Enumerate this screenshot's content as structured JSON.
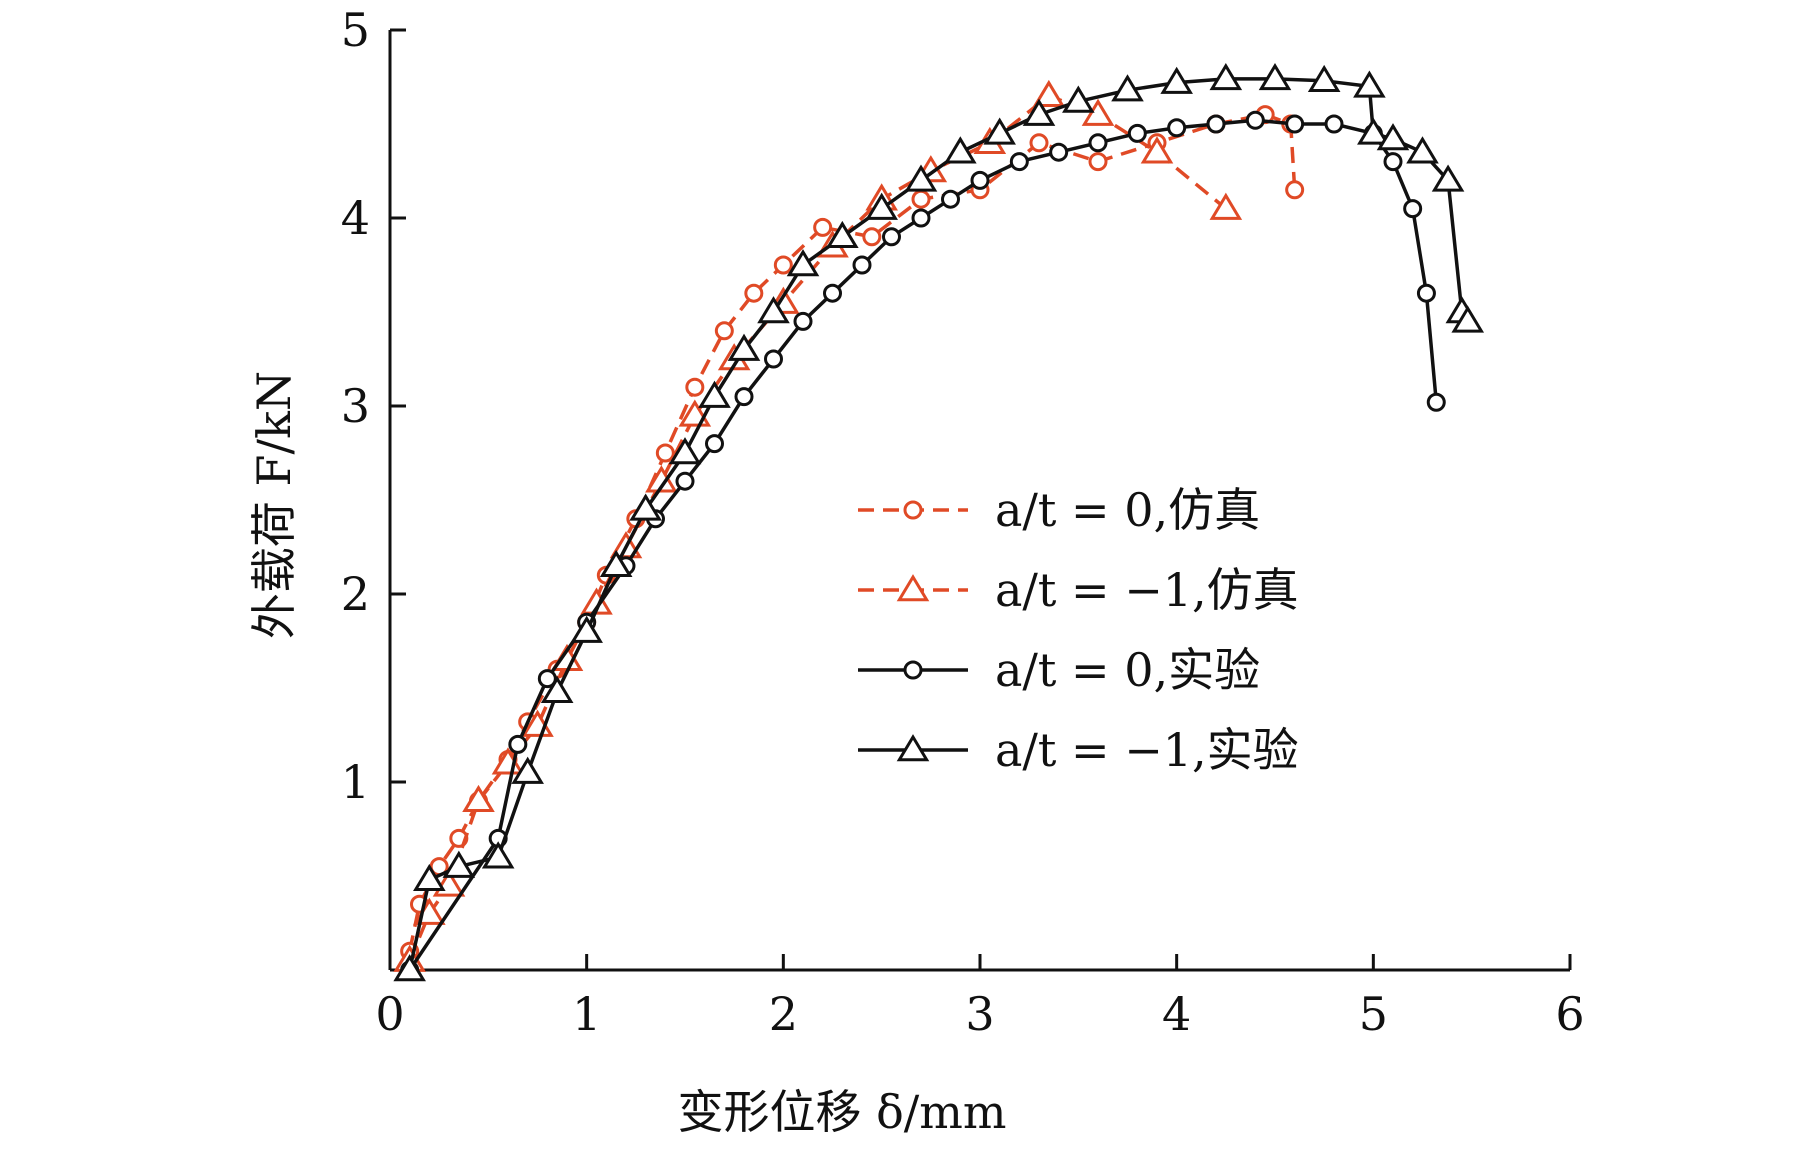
{
  "chart_data": {
    "type": "line",
    "xlabel": "变形位移 δ/mm",
    "ylabel": "外载荷 F/kN",
    "xlim": [
      0,
      6
    ],
    "ylim": [
      0,
      5
    ],
    "xticks": [
      "0",
      "1",
      "2",
      "3",
      "4",
      "5",
      "6"
    ],
    "yticks": [
      "1",
      "2",
      "3",
      "4",
      "5"
    ],
    "grid": false,
    "legend_position": "center-right",
    "colors": {
      "sim": "#e04a26",
      "exp": "#111111"
    },
    "series": [
      {
        "name": "a/t = 0,仿真",
        "style": "dashed",
        "marker": "circle",
        "color": "#e04a26",
        "x": [
          0.1,
          0.15,
          0.25,
          0.35,
          0.45,
          0.6,
          0.7,
          0.85,
          1.0,
          1.1,
          1.25,
          1.4,
          1.55,
          1.7,
          1.85,
          2.0,
          2.2,
          2.45,
          2.7,
          3.0,
          3.3,
          3.6,
          3.9,
          4.2,
          4.45,
          4.58,
          4.6
        ],
        "y": [
          0.1,
          0.35,
          0.55,
          0.7,
          0.9,
          1.12,
          1.32,
          1.6,
          1.85,
          2.1,
          2.4,
          2.75,
          3.1,
          3.4,
          3.6,
          3.75,
          3.95,
          3.9,
          4.1,
          4.15,
          4.4,
          4.3,
          4.4,
          4.5,
          4.55,
          4.5,
          4.15
        ]
      },
      {
        "name": "a/t = −1,仿真",
        "style": "dashed",
        "marker": "triangle",
        "color": "#e04a26",
        "x": [
          0.1,
          0.2,
          0.3,
          0.45,
          0.6,
          0.75,
          0.9,
          1.05,
          1.2,
          1.38,
          1.55,
          1.75,
          2.0,
          2.25,
          2.5,
          2.75,
          3.05,
          3.35,
          3.6,
          3.9,
          4.25
        ],
        "y": [
          0.05,
          0.3,
          0.45,
          0.9,
          1.1,
          1.3,
          1.65,
          1.95,
          2.25,
          2.6,
          2.95,
          3.25,
          3.55,
          3.85,
          4.1,
          4.25,
          4.4,
          4.65,
          4.55,
          4.35,
          4.05
        ]
      },
      {
        "name": "a/t = 0,实验",
        "style": "solid",
        "marker": "circle",
        "color": "#111111",
        "x": [
          0.1,
          0.55,
          0.65,
          0.8,
          1.0,
          1.2,
          1.35,
          1.5,
          1.65,
          1.8,
          1.95,
          2.1,
          2.25,
          2.4,
          2.55,
          2.7,
          2.85,
          3.0,
          3.2,
          3.4,
          3.6,
          3.8,
          4.0,
          4.2,
          4.4,
          4.6,
          4.8,
          5.0,
          5.1,
          5.2,
          5.27,
          5.32
        ],
        "y": [
          0.0,
          0.7,
          1.2,
          1.55,
          1.85,
          2.15,
          2.4,
          2.6,
          2.8,
          3.05,
          3.25,
          3.45,
          3.6,
          3.75,
          3.9,
          4.0,
          4.1,
          4.2,
          4.3,
          4.35,
          4.4,
          4.45,
          4.48,
          4.5,
          4.52,
          4.5,
          4.5,
          4.45,
          4.3,
          4.05,
          3.6,
          3.02
        ]
      },
      {
        "name": "a/t = −1,实验",
        "style": "solid",
        "marker": "triangle",
        "color": "#111111",
        "x": [
          0.1,
          0.2,
          0.35,
          0.55,
          0.7,
          0.85,
          1.0,
          1.15,
          1.3,
          1.5,
          1.65,
          1.8,
          1.95,
          2.1,
          2.3,
          2.5,
          2.7,
          2.9,
          3.1,
          3.3,
          3.5,
          3.75,
          4.0,
          4.25,
          4.5,
          4.75,
          4.98,
          5.0,
          5.1,
          5.25,
          5.38,
          5.45,
          5.48
        ],
        "y": [
          0.0,
          0.48,
          0.55,
          0.6,
          1.05,
          1.48,
          1.8,
          2.15,
          2.45,
          2.75,
          3.05,
          3.3,
          3.5,
          3.75,
          3.9,
          4.05,
          4.2,
          4.35,
          4.45,
          4.55,
          4.62,
          4.68,
          4.72,
          4.74,
          4.74,
          4.73,
          4.7,
          4.45,
          4.42,
          4.35,
          4.2,
          3.5,
          3.45
        ]
      }
    ]
  }
}
